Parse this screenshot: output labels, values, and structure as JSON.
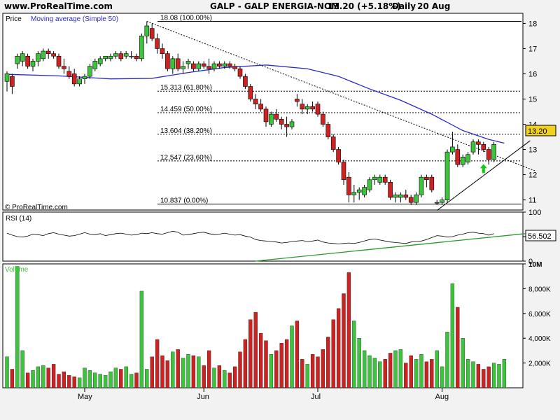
{
  "header": {
    "site": "www.ProRealTime.com",
    "title": "GALP - GALP ENERGIA-NOM",
    "quote": "13.20 (+5.18%)",
    "period": "Daily",
    "date": "20 Aug"
  },
  "watermark": "© ProRealTime.com",
  "colors": {
    "up": "#3cc43c",
    "down": "#cc2222",
    "ma": "#2a2ac8",
    "rsi_trend": "#2a9a2a",
    "arrow": "#11cc11",
    "background": "#ffffff"
  },
  "chart_data": [
    {
      "type": "candlestick",
      "title": "Price",
      "legend": [
        "Moving average (Simple 50)"
      ],
      "ylim": [
        10.6,
        18.4
      ],
      "y_ticks": [
        11,
        12,
        13,
        14,
        15,
        16,
        17,
        18
      ],
      "x_month_labels": [
        "May",
        "Jun",
        "Jul",
        "Aug"
      ],
      "last_price": "13.20",
      "candles": [
        {
          "o": 15.7,
          "h": 16.1,
          "l": 15.3,
          "c": 16.0
        },
        {
          "o": 15.9,
          "h": 16.0,
          "l": 15.2,
          "c": 15.5
        },
        {
          "o": 16.4,
          "h": 16.8,
          "l": 16.2,
          "c": 16.7
        },
        {
          "o": 16.5,
          "h": 16.9,
          "l": 16.3,
          "c": 16.8
        },
        {
          "o": 16.7,
          "h": 16.8,
          "l": 16.2,
          "c": 16.3
        },
        {
          "o": 16.3,
          "h": 16.6,
          "l": 16.1,
          "c": 16.5
        },
        {
          "o": 16.5,
          "h": 16.9,
          "l": 16.3,
          "c": 16.8
        },
        {
          "o": 16.6,
          "h": 17.0,
          "l": 16.5,
          "c": 16.9
        },
        {
          "o": 16.9,
          "h": 17.0,
          "l": 16.6,
          "c": 16.8
        },
        {
          "o": 16.8,
          "h": 16.9,
          "l": 16.6,
          "c": 16.7
        },
        {
          "o": 16.7,
          "h": 16.8,
          "l": 16.2,
          "c": 16.3
        },
        {
          "o": 16.3,
          "h": 16.6,
          "l": 16.0,
          "c": 16.2
        },
        {
          "o": 16.1,
          "h": 16.3,
          "l": 15.8,
          "c": 15.9
        },
        {
          "o": 16.0,
          "h": 16.2,
          "l": 15.5,
          "c": 15.6
        },
        {
          "o": 15.6,
          "h": 15.9,
          "l": 15.5,
          "c": 15.8
        },
        {
          "o": 15.8,
          "h": 16.0,
          "l": 15.6,
          "c": 15.9
        },
        {
          "o": 15.9,
          "h": 16.4,
          "l": 15.8,
          "c": 16.3
        },
        {
          "o": 16.2,
          "h": 16.6,
          "l": 16.1,
          "c": 16.5
        },
        {
          "o": 16.4,
          "h": 16.7,
          "l": 16.3,
          "c": 16.6
        },
        {
          "o": 16.6,
          "h": 16.7,
          "l": 16.5,
          "c": 16.7
        },
        {
          "o": 16.6,
          "h": 16.8,
          "l": 16.5,
          "c": 16.7
        },
        {
          "o": 16.7,
          "h": 16.9,
          "l": 16.6,
          "c": 16.8
        },
        {
          "o": 16.8,
          "h": 16.9,
          "l": 16.5,
          "c": 16.6
        },
        {
          "o": 16.7,
          "h": 16.9,
          "l": 16.6,
          "c": 16.8
        },
        {
          "o": 16.7,
          "h": 16.9,
          "l": 16.6,
          "c": 16.7
        },
        {
          "o": 16.7,
          "h": 16.8,
          "l": 16.5,
          "c": 16.6
        },
        {
          "o": 16.6,
          "h": 17.6,
          "l": 16.5,
          "c": 17.5
        },
        {
          "o": 17.5,
          "h": 18.08,
          "l": 17.2,
          "c": 17.9
        },
        {
          "o": 17.8,
          "h": 18.0,
          "l": 17.3,
          "c": 17.4
        },
        {
          "o": 17.4,
          "h": 17.6,
          "l": 16.8,
          "c": 17.0
        },
        {
          "o": 17.0,
          "h": 17.2,
          "l": 16.6,
          "c": 16.8
        },
        {
          "o": 16.8,
          "h": 16.9,
          "l": 16.1,
          "c": 16.2
        },
        {
          "o": 16.2,
          "h": 16.7,
          "l": 16.0,
          "c": 16.6
        },
        {
          "o": 16.6,
          "h": 16.8,
          "l": 16.1,
          "c": 16.2
        },
        {
          "o": 16.2,
          "h": 16.5,
          "l": 16.0,
          "c": 16.3
        },
        {
          "o": 16.4,
          "h": 16.6,
          "l": 16.2,
          "c": 16.5
        },
        {
          "o": 16.4,
          "h": 16.5,
          "l": 16.1,
          "c": 16.2
        },
        {
          "o": 16.2,
          "h": 16.5,
          "l": 16.1,
          "c": 16.4
        },
        {
          "o": 16.4,
          "h": 16.5,
          "l": 16.2,
          "c": 16.3
        },
        {
          "o": 16.3,
          "h": 16.6,
          "l": 16.0,
          "c": 16.2
        },
        {
          "o": 16.2,
          "h": 16.5,
          "l": 16.1,
          "c": 16.4
        },
        {
          "o": 16.4,
          "h": 16.5,
          "l": 16.2,
          "c": 16.3
        },
        {
          "o": 16.3,
          "h": 16.5,
          "l": 16.2,
          "c": 16.4
        },
        {
          "o": 16.4,
          "h": 16.5,
          "l": 16.2,
          "c": 16.3
        },
        {
          "o": 16.3,
          "h": 16.4,
          "l": 16.1,
          "c": 16.2
        },
        {
          "o": 16.2,
          "h": 16.3,
          "l": 15.8,
          "c": 15.9
        },
        {
          "o": 15.9,
          "h": 16.0,
          "l": 15.4,
          "c": 15.5
        },
        {
          "o": 15.5,
          "h": 15.6,
          "l": 14.9,
          "c": 15.0
        },
        {
          "o": 15.0,
          "h": 15.2,
          "l": 14.6,
          "c": 14.8
        },
        {
          "o": 14.8,
          "h": 15.0,
          "l": 14.5,
          "c": 14.6
        },
        {
          "o": 14.6,
          "h": 14.7,
          "l": 13.9,
          "c": 14.1
        },
        {
          "o": 14.0,
          "h": 14.5,
          "l": 13.9,
          "c": 14.4
        },
        {
          "o": 14.4,
          "h": 14.6,
          "l": 14.1,
          "c": 14.2
        },
        {
          "o": 14.2,
          "h": 14.3,
          "l": 13.8,
          "c": 14.0
        },
        {
          "o": 14.0,
          "h": 14.3,
          "l": 13.5,
          "c": 13.9
        },
        {
          "o": 13.9,
          "h": 14.2,
          "l": 13.8,
          "c": 14.1
        },
        {
          "o": 15.0,
          "h": 15.2,
          "l": 14.7,
          "c": 14.9
        },
        {
          "o": 14.8,
          "h": 15.0,
          "l": 14.4,
          "c": 14.6
        },
        {
          "o": 14.6,
          "h": 14.8,
          "l": 14.4,
          "c": 14.7
        },
        {
          "o": 14.7,
          "h": 14.9,
          "l": 14.5,
          "c": 14.6
        },
        {
          "o": 14.8,
          "h": 14.9,
          "l": 14.3,
          "c": 14.4
        },
        {
          "o": 14.4,
          "h": 14.5,
          "l": 13.9,
          "c": 14.0
        },
        {
          "o": 14.0,
          "h": 14.1,
          "l": 13.4,
          "c": 13.5
        },
        {
          "o": 13.5,
          "h": 13.6,
          "l": 12.9,
          "c": 13.0
        },
        {
          "o": 13.0,
          "h": 13.1,
          "l": 12.4,
          "c": 12.5
        },
        {
          "o": 12.5,
          "h": 12.6,
          "l": 11.6,
          "c": 11.8
        },
        {
          "o": 11.9,
          "h": 12.1,
          "l": 10.9,
          "c": 11.2
        },
        {
          "o": 11.2,
          "h": 11.6,
          "l": 10.9,
          "c": 11.3
        },
        {
          "o": 11.3,
          "h": 11.5,
          "l": 11.0,
          "c": 11.4
        },
        {
          "o": 11.2,
          "h": 11.6,
          "l": 11.1,
          "c": 11.5
        },
        {
          "o": 11.4,
          "h": 11.9,
          "l": 11.3,
          "c": 11.8
        },
        {
          "o": 11.8,
          "h": 12.0,
          "l": 11.6,
          "c": 11.9
        },
        {
          "o": 11.7,
          "h": 12.0,
          "l": 11.6,
          "c": 11.9
        },
        {
          "o": 11.9,
          "h": 12.0,
          "l": 11.6,
          "c": 11.7
        },
        {
          "o": 11.7,
          "h": 11.8,
          "l": 11.0,
          "c": 11.1
        },
        {
          "o": 11.1,
          "h": 11.3,
          "l": 10.9,
          "c": 11.2
        },
        {
          "o": 11.1,
          "h": 11.3,
          "l": 10.9,
          "c": 11.2
        },
        {
          "o": 11.2,
          "h": 11.4,
          "l": 11.0,
          "c": 11.1
        },
        {
          "o": 11.1,
          "h": 11.2,
          "l": 10.8,
          "c": 10.9
        },
        {
          "o": 10.9,
          "h": 11.3,
          "l": 10.8,
          "c": 11.2
        },
        {
          "o": 11.2,
          "h": 12.0,
          "l": 11.1,
          "c": 11.9
        },
        {
          "o": 11.9,
          "h": 12.0,
          "l": 11.5,
          "c": 11.8
        },
        {
          "o": 11.9,
          "h": 12.0,
          "l": 11.3,
          "c": 11.4
        },
        {
          "o": 10.9,
          "h": 11.0,
          "l": 10.8,
          "c": 10.9
        },
        {
          "o": 10.9,
          "h": 11.1,
          "l": 10.8,
          "c": 11.0
        },
        {
          "o": 11.0,
          "h": 13.0,
          "l": 10.9,
          "c": 12.9
        },
        {
          "o": 12.9,
          "h": 13.7,
          "l": 12.8,
          "c": 13.1
        },
        {
          "o": 13.0,
          "h": 13.2,
          "l": 12.3,
          "c": 12.4
        },
        {
          "o": 12.4,
          "h": 12.8,
          "l": 12.3,
          "c": 12.7
        },
        {
          "o": 12.5,
          "h": 12.9,
          "l": 12.4,
          "c": 12.8
        },
        {
          "o": 12.9,
          "h": 13.4,
          "l": 12.8,
          "c": 13.3
        },
        {
          "o": 13.3,
          "h": 13.4,
          "l": 12.8,
          "c": 13.2
        },
        {
          "o": 13.2,
          "h": 13.3,
          "l": 12.9,
          "c": 13.0
        },
        {
          "o": 13.0,
          "h": 13.1,
          "l": 12.4,
          "c": 12.6
        },
        {
          "o": 12.6,
          "h": 13.3,
          "l": 12.5,
          "c": 13.2
        }
      ],
      "ma50": [
        {
          "i": 0,
          "v": 15.98
        },
        {
          "i": 10,
          "v": 15.92
        },
        {
          "i": 20,
          "v": 15.8
        },
        {
          "i": 28,
          "v": 15.82
        },
        {
          "i": 35,
          "v": 16.05
        },
        {
          "i": 42,
          "v": 16.25
        },
        {
          "i": 50,
          "v": 16.35
        },
        {
          "i": 58,
          "v": 16.2
        },
        {
          "i": 64,
          "v": 15.9
        },
        {
          "i": 70,
          "v": 15.4
        },
        {
          "i": 76,
          "v": 14.95
        },
        {
          "i": 82,
          "v": 14.4
        },
        {
          "i": 88,
          "v": 13.75
        },
        {
          "i": 93,
          "v": 13.4
        },
        {
          "i": 96,
          "v": 13.25
        }
      ],
      "fibonacci": [
        {
          "level": 18.08,
          "label": "18.08 (100.00%)"
        },
        {
          "level": 15.313,
          "label": "15.313 (61.80%)"
        },
        {
          "level": 14.459,
          "label": "14.459 (50.00%)"
        },
        {
          "level": 13.604,
          "label": "13.604 (38.20%)"
        },
        {
          "level": 12.547,
          "label": "12.547 (23.60%)"
        },
        {
          "level": 10.837,
          "label": "10.837 (0.00%)"
        }
      ],
      "trendlines": [
        {
          "style": "dotted",
          "from": {
            "i": 27,
            "v": 18.08
          },
          "to": {
            "i": 102,
            "v": 12.15
          }
        },
        {
          "style": "solid",
          "from": {
            "i": 83,
            "v": 10.58
          },
          "to": {
            "i": 101,
            "v": 13.35
          }
        }
      ],
      "signal_arrow": {
        "i": 92,
        "v": 12.2,
        "direction": "up"
      }
    },
    {
      "type": "line",
      "title": "RSI (14)",
      "ylim": [
        0,
        100
      ],
      "y_ticks": [
        0,
        50,
        100
      ],
      "last_value": "56.502",
      "series": [
        {
          "values": [
            57,
            53,
            50,
            49,
            51,
            55,
            54,
            52,
            56,
            58,
            55,
            53,
            51,
            52,
            55,
            58,
            55,
            54,
            56,
            52,
            54,
            56,
            57,
            55,
            53,
            54,
            57,
            56,
            58,
            56,
            55,
            58,
            61,
            59,
            53,
            54,
            56,
            58,
            59,
            56,
            54,
            55,
            57,
            55,
            53,
            54,
            51,
            49,
            44,
            42,
            41,
            40,
            39,
            37,
            38,
            40,
            41,
            42,
            40,
            41,
            43,
            39,
            37,
            36,
            35,
            36,
            37,
            36,
            38,
            41,
            44,
            45,
            43,
            41,
            39,
            38,
            37,
            36,
            39,
            40,
            41,
            44,
            48,
            52,
            51,
            49,
            50,
            53,
            55,
            58,
            59,
            57,
            56,
            53,
            56
          ]
        }
      ],
      "trendline": {
        "from": {
          "i": 48,
          "v": 0
        },
        "to": {
          "i": 100,
          "v": 56
        }
      }
    },
    {
      "type": "bar",
      "title": "Volume",
      "ylim": [
        0,
        10000
      ],
      "y_tick_labels": [
        "2,000K",
        "4,000K",
        "6,000K",
        "8,000K",
        "10M"
      ],
      "values": [
        2500,
        1500,
        9800,
        3000,
        1200,
        1400,
        1700,
        1800,
        1600,
        1900,
        1100,
        1300,
        1000,
        900,
        800,
        1600,
        1400,
        1200,
        1100,
        1000,
        1300,
        1600,
        1500,
        1700,
        1100,
        1200,
        7800,
        1500,
        2500,
        3900,
        2600,
        2200,
        2900,
        3100,
        2400,
        2700,
        2600,
        2500,
        1800,
        3000,
        1600,
        1800,
        1400,
        1200,
        1700,
        2900,
        3900,
        5500,
        6100,
        4400,
        3800,
        2700,
        3000,
        3600,
        3900,
        5000,
        5400,
        2300,
        1900,
        2700,
        2500,
        3100,
        4100,
        5500,
        6400,
        7600,
        9300,
        5400,
        4000,
        3000,
        2600,
        2400,
        2100,
        2300,
        2800,
        3000,
        3100,
        2000,
        2600,
        2300,
        2700,
        2100,
        2300,
        3000,
        1700,
        4500,
        8400,
        6500,
        4000,
        2300,
        2100,
        1900,
        1500,
        1700,
        2000,
        1900,
        2300
      ]
    }
  ]
}
